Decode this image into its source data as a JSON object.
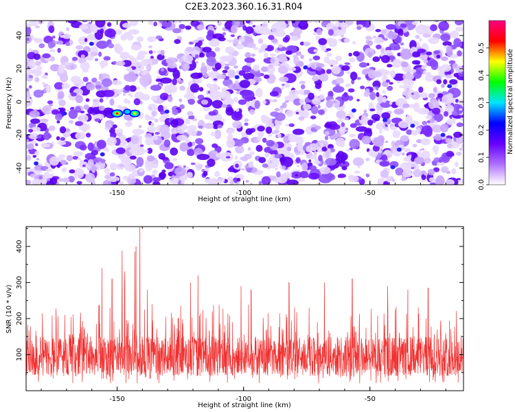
{
  "title": "C2E3.2023.360.16.31.R04",
  "chart_data": [
    {
      "type": "heatmap",
      "xlabel": "Height of straight line (km)",
      "ylabel": "Frequency (Hz)",
      "xlim": [
        -186,
        -13
      ],
      "ylim": [
        -50,
        49
      ],
      "xticks": [
        -150,
        -100,
        -50
      ],
      "yticks": [
        -40,
        -20,
        0,
        20,
        40
      ],
      "colorbar": {
        "label": "Normalized spectral amplitude",
        "range": [
          0,
          0.6
        ],
        "ticks": [
          "0.0",
          "0.1",
          "0.2",
          "0.3",
          "0.4",
          "0.5"
        ],
        "colors": [
          "#ffffff",
          "#b070ff",
          "#6600ff",
          "#0000ff",
          "#00e5ff",
          "#00ff00",
          "#ffff00",
          "#ff0000",
          "#ff0080"
        ]
      },
      "hotspots": [
        {
          "x": -150,
          "y": -7,
          "value": 0.55
        },
        {
          "x": -143,
          "y": -7,
          "value": 0.45
        },
        {
          "x": -146,
          "y": -6,
          "value": 0.2
        }
      ]
    },
    {
      "type": "line",
      "xlabel": "Height of straight line (km)",
      "ylabel": "SNR (10 * v/v)",
      "xlim": [
        -186,
        -13
      ],
      "ylim": [
        0,
        455
      ],
      "xticks": [
        -150,
        -100,
        -50
      ],
      "yticks": [
        100,
        200,
        300,
        400
      ],
      "color": "#f03030",
      "baseline_range": [
        40,
        150
      ],
      "peaks": [
        {
          "x": -141,
          "y": 450
        },
        {
          "x": -142.5,
          "y": 400
        },
        {
          "x": -143,
          "y": 380
        },
        {
          "x": -147,
          "y": 300
        },
        {
          "x": -148,
          "y": 370
        },
        {
          "x": -156,
          "y": 340
        },
        {
          "x": -152,
          "y": 310
        },
        {
          "x": -138,
          "y": 280
        },
        {
          "x": -121,
          "y": 300
        },
        {
          "x": -118,
          "y": 320
        },
        {
          "x": -101,
          "y": 290
        },
        {
          "x": -97,
          "y": 280
        },
        {
          "x": -82,
          "y": 300
        },
        {
          "x": -68,
          "y": 300
        },
        {
          "x": -57,
          "y": 310
        },
        {
          "x": -43,
          "y": 290
        },
        {
          "x": -35,
          "y": 280
        },
        {
          "x": -27,
          "y": 285
        }
      ]
    }
  ]
}
